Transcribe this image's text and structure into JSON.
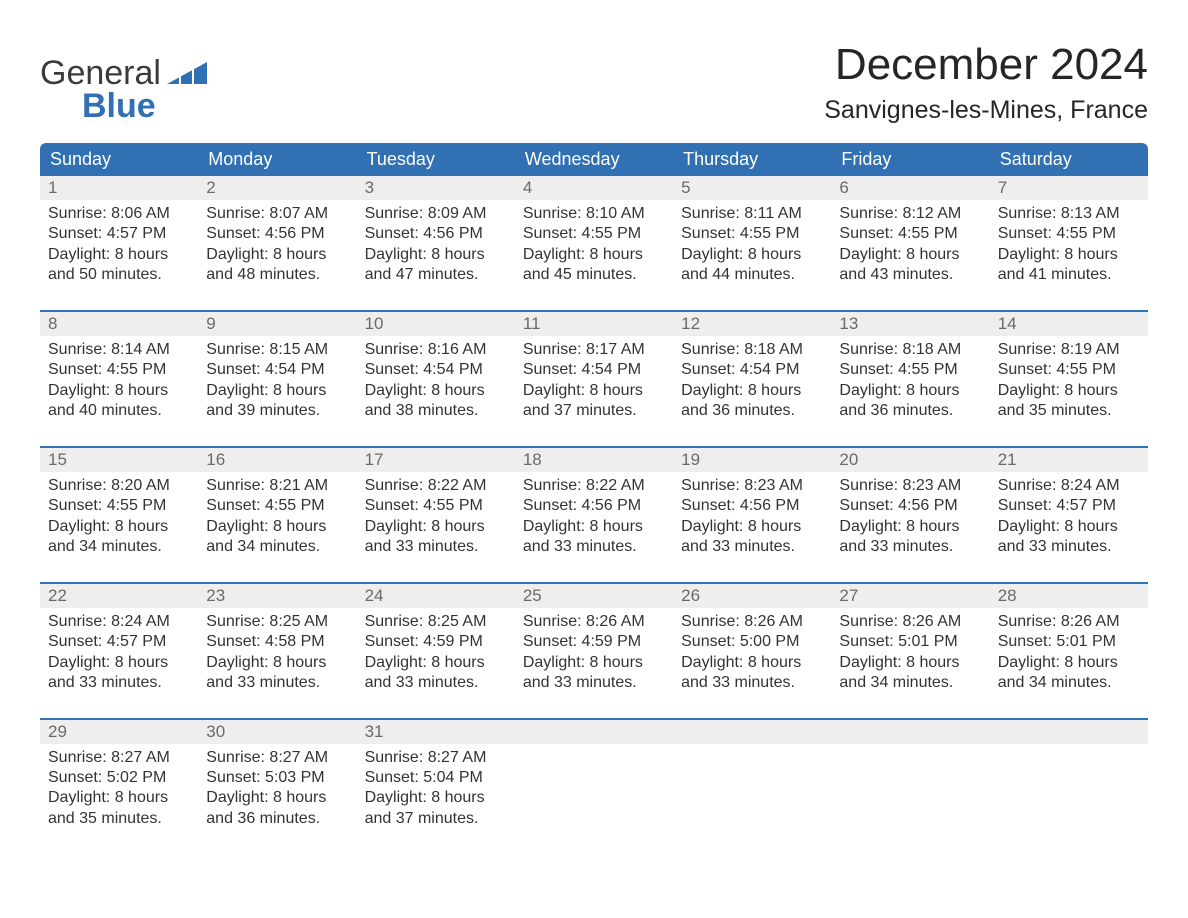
{
  "brand": {
    "word1": "General",
    "word2": "Blue",
    "accent_color": "#3070b3",
    "text_color": "#3b3b3b"
  },
  "title": "December 2024",
  "subtitle": "Sanvignes-les-Mines, France",
  "header_bg": "#3070b3",
  "header_fg": "#ffffff",
  "daynum_bg": "#eeeeee",
  "daynum_fg": "#6a6a6a",
  "row_border_color": "#3070b3",
  "body_text_color": "#333333",
  "page_bg": "#ffffff",
  "columns": [
    "Sunday",
    "Monday",
    "Tuesday",
    "Wednesday",
    "Thursday",
    "Friday",
    "Saturday"
  ],
  "weeks": [
    {
      "days": [
        {
          "n": "1",
          "sunrise": "Sunrise: 8:06 AM",
          "sunset": "Sunset: 4:57 PM",
          "d1": "Daylight: 8 hours",
          "d2": "and 50 minutes."
        },
        {
          "n": "2",
          "sunrise": "Sunrise: 8:07 AM",
          "sunset": "Sunset: 4:56 PM",
          "d1": "Daylight: 8 hours",
          "d2": "and 48 minutes."
        },
        {
          "n": "3",
          "sunrise": "Sunrise: 8:09 AM",
          "sunset": "Sunset: 4:56 PM",
          "d1": "Daylight: 8 hours",
          "d2": "and 47 minutes."
        },
        {
          "n": "4",
          "sunrise": "Sunrise: 8:10 AM",
          "sunset": "Sunset: 4:55 PM",
          "d1": "Daylight: 8 hours",
          "d2": "and 45 minutes."
        },
        {
          "n": "5",
          "sunrise": "Sunrise: 8:11 AM",
          "sunset": "Sunset: 4:55 PM",
          "d1": "Daylight: 8 hours",
          "d2": "and 44 minutes."
        },
        {
          "n": "6",
          "sunrise": "Sunrise: 8:12 AM",
          "sunset": "Sunset: 4:55 PM",
          "d1": "Daylight: 8 hours",
          "d2": "and 43 minutes."
        },
        {
          "n": "7",
          "sunrise": "Sunrise: 8:13 AM",
          "sunset": "Sunset: 4:55 PM",
          "d1": "Daylight: 8 hours",
          "d2": "and 41 minutes."
        }
      ]
    },
    {
      "days": [
        {
          "n": "8",
          "sunrise": "Sunrise: 8:14 AM",
          "sunset": "Sunset: 4:55 PM",
          "d1": "Daylight: 8 hours",
          "d2": "and 40 minutes."
        },
        {
          "n": "9",
          "sunrise": "Sunrise: 8:15 AM",
          "sunset": "Sunset: 4:54 PM",
          "d1": "Daylight: 8 hours",
          "d2": "and 39 minutes."
        },
        {
          "n": "10",
          "sunrise": "Sunrise: 8:16 AM",
          "sunset": "Sunset: 4:54 PM",
          "d1": "Daylight: 8 hours",
          "d2": "and 38 minutes."
        },
        {
          "n": "11",
          "sunrise": "Sunrise: 8:17 AM",
          "sunset": "Sunset: 4:54 PM",
          "d1": "Daylight: 8 hours",
          "d2": "and 37 minutes."
        },
        {
          "n": "12",
          "sunrise": "Sunrise: 8:18 AM",
          "sunset": "Sunset: 4:54 PM",
          "d1": "Daylight: 8 hours",
          "d2": "and 36 minutes."
        },
        {
          "n": "13",
          "sunrise": "Sunrise: 8:18 AM",
          "sunset": "Sunset: 4:55 PM",
          "d1": "Daylight: 8 hours",
          "d2": "and 36 minutes."
        },
        {
          "n": "14",
          "sunrise": "Sunrise: 8:19 AM",
          "sunset": "Sunset: 4:55 PM",
          "d1": "Daylight: 8 hours",
          "d2": "and 35 minutes."
        }
      ]
    },
    {
      "days": [
        {
          "n": "15",
          "sunrise": "Sunrise: 8:20 AM",
          "sunset": "Sunset: 4:55 PM",
          "d1": "Daylight: 8 hours",
          "d2": "and 34 minutes."
        },
        {
          "n": "16",
          "sunrise": "Sunrise: 8:21 AM",
          "sunset": "Sunset: 4:55 PM",
          "d1": "Daylight: 8 hours",
          "d2": "and 34 minutes."
        },
        {
          "n": "17",
          "sunrise": "Sunrise: 8:22 AM",
          "sunset": "Sunset: 4:55 PM",
          "d1": "Daylight: 8 hours",
          "d2": "and 33 minutes."
        },
        {
          "n": "18",
          "sunrise": "Sunrise: 8:22 AM",
          "sunset": "Sunset: 4:56 PM",
          "d1": "Daylight: 8 hours",
          "d2": "and 33 minutes."
        },
        {
          "n": "19",
          "sunrise": "Sunrise: 8:23 AM",
          "sunset": "Sunset: 4:56 PM",
          "d1": "Daylight: 8 hours",
          "d2": "and 33 minutes."
        },
        {
          "n": "20",
          "sunrise": "Sunrise: 8:23 AM",
          "sunset": "Sunset: 4:56 PM",
          "d1": "Daylight: 8 hours",
          "d2": "and 33 minutes."
        },
        {
          "n": "21",
          "sunrise": "Sunrise: 8:24 AM",
          "sunset": "Sunset: 4:57 PM",
          "d1": "Daylight: 8 hours",
          "d2": "and 33 minutes."
        }
      ]
    },
    {
      "days": [
        {
          "n": "22",
          "sunrise": "Sunrise: 8:24 AM",
          "sunset": "Sunset: 4:57 PM",
          "d1": "Daylight: 8 hours",
          "d2": "and 33 minutes."
        },
        {
          "n": "23",
          "sunrise": "Sunrise: 8:25 AM",
          "sunset": "Sunset: 4:58 PM",
          "d1": "Daylight: 8 hours",
          "d2": "and 33 minutes."
        },
        {
          "n": "24",
          "sunrise": "Sunrise: 8:25 AM",
          "sunset": "Sunset: 4:59 PM",
          "d1": "Daylight: 8 hours",
          "d2": "and 33 minutes."
        },
        {
          "n": "25",
          "sunrise": "Sunrise: 8:26 AM",
          "sunset": "Sunset: 4:59 PM",
          "d1": "Daylight: 8 hours",
          "d2": "and 33 minutes."
        },
        {
          "n": "26",
          "sunrise": "Sunrise: 8:26 AM",
          "sunset": "Sunset: 5:00 PM",
          "d1": "Daylight: 8 hours",
          "d2": "and 33 minutes."
        },
        {
          "n": "27",
          "sunrise": "Sunrise: 8:26 AM",
          "sunset": "Sunset: 5:01 PM",
          "d1": "Daylight: 8 hours",
          "d2": "and 34 minutes."
        },
        {
          "n": "28",
          "sunrise": "Sunrise: 8:26 AM",
          "sunset": "Sunset: 5:01 PM",
          "d1": "Daylight: 8 hours",
          "d2": "and 34 minutes."
        }
      ]
    },
    {
      "days": [
        {
          "n": "29",
          "sunrise": "Sunrise: 8:27 AM",
          "sunset": "Sunset: 5:02 PM",
          "d1": "Daylight: 8 hours",
          "d2": "and 35 minutes."
        },
        {
          "n": "30",
          "sunrise": "Sunrise: 8:27 AM",
          "sunset": "Sunset: 5:03 PM",
          "d1": "Daylight: 8 hours",
          "d2": "and 36 minutes."
        },
        {
          "n": "31",
          "sunrise": "Sunrise: 8:27 AM",
          "sunset": "Sunset: 5:04 PM",
          "d1": "Daylight: 8 hours",
          "d2": "and 37 minutes."
        },
        {
          "n": "",
          "sunrise": "",
          "sunset": "",
          "d1": "",
          "d2": ""
        },
        {
          "n": "",
          "sunrise": "",
          "sunset": "",
          "d1": "",
          "d2": ""
        },
        {
          "n": "",
          "sunrise": "",
          "sunset": "",
          "d1": "",
          "d2": ""
        },
        {
          "n": "",
          "sunrise": "",
          "sunset": "",
          "d1": "",
          "d2": ""
        }
      ]
    }
  ]
}
